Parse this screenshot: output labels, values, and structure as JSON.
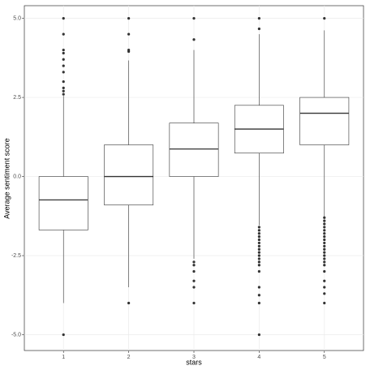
{
  "chart_data": {
    "type": "boxplot",
    "x_label": "stars",
    "y_label": "Average sentiment score",
    "categories": [
      "1",
      "2",
      "3",
      "4",
      "5"
    ],
    "boxes": [
      {
        "min": -4.0,
        "q1": -1.69,
        "median": -0.74,
        "q3": 0.0,
        "max": 2.55,
        "outliers": [
          5.0,
          4.5,
          4.0,
          3.9,
          3.7,
          3.5,
          3.3,
          3.0,
          2.8,
          2.7,
          2.6,
          -5.0
        ]
      },
      {
        "min": -3.5,
        "q1": -0.9,
        "median": 0.0,
        "q3": 1.0,
        "max": 3.67,
        "outliers": [
          5.0,
          4.5,
          4.0,
          3.95,
          -4.0
        ]
      },
      {
        "min": -2.6,
        "q1": 0.0,
        "median": 0.87,
        "q3": 1.69,
        "max": 4.0,
        "outliers": [
          5.0,
          4.33,
          -2.7,
          -2.8,
          -3.0,
          -3.3,
          -3.5,
          -4.0
        ]
      },
      {
        "min": -1.54,
        "q1": 0.74,
        "median": 1.5,
        "q3": 2.25,
        "max": 4.5,
        "outliers": [
          5.0,
          4.67,
          -1.6,
          -1.7,
          -1.8,
          -1.9,
          -2.0,
          -2.1,
          -2.2,
          -2.3,
          -2.4,
          -2.5,
          -2.6,
          -2.7,
          -2.8,
          -3.0,
          -3.5,
          -3.75,
          -4.0,
          -5.0
        ]
      },
      {
        "min": -1.28,
        "q1": 1.0,
        "median": 2.0,
        "q3": 2.5,
        "max": 4.62,
        "outliers": [
          5.0,
          -1.3,
          -1.4,
          -1.5,
          -1.6,
          -1.7,
          -1.8,
          -1.9,
          -2.0,
          -2.1,
          -2.2,
          -2.3,
          -2.4,
          -2.5,
          -2.6,
          -2.7,
          -2.8,
          -3.0,
          -3.3,
          -3.5,
          -3.7,
          -4.0
        ]
      }
    ],
    "ylim": [
      -5.5,
      5.4
    ],
    "yticks": [
      {
        "value": -5,
        "label": "-5.0"
      },
      {
        "value": -2.5,
        "label": "-2.5"
      },
      {
        "value": 0,
        "label": "0.0"
      },
      {
        "value": 2.5,
        "label": "2.5"
      },
      {
        "value": 5,
        "label": "5.0"
      }
    ],
    "grid": true,
    "color": "#333333"
  }
}
